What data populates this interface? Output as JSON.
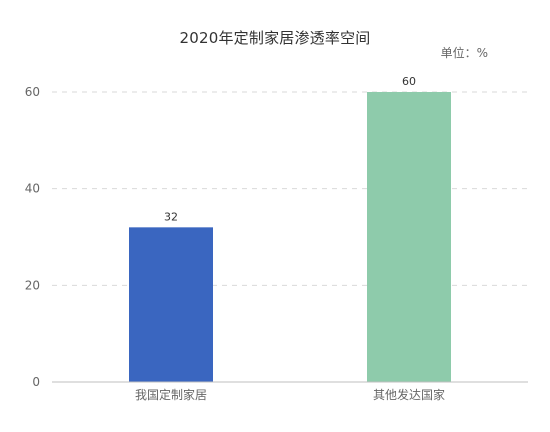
{
  "chart_data": {
    "type": "bar",
    "title": "2020年定制家居渗透率空间",
    "unit_label": "单位：%",
    "categories": [
      "我国定制家居",
      "其他发达国家"
    ],
    "values": [
      32,
      60
    ],
    "data_labels": [
      "32",
      "60"
    ],
    "ylim": [
      0,
      60
    ],
    "yticks": [
      0,
      20,
      40,
      60
    ],
    "ytick_labels": [
      "0",
      "20",
      "40",
      "60"
    ],
    "xlabel": "",
    "ylabel": "",
    "grid": true,
    "bar_colors": [
      "#3a66c0",
      "#8ecbab"
    ],
    "grid_color": "#d9d9d9",
    "axis_color": "#bfbfbf",
    "label_color": "#666666"
  }
}
